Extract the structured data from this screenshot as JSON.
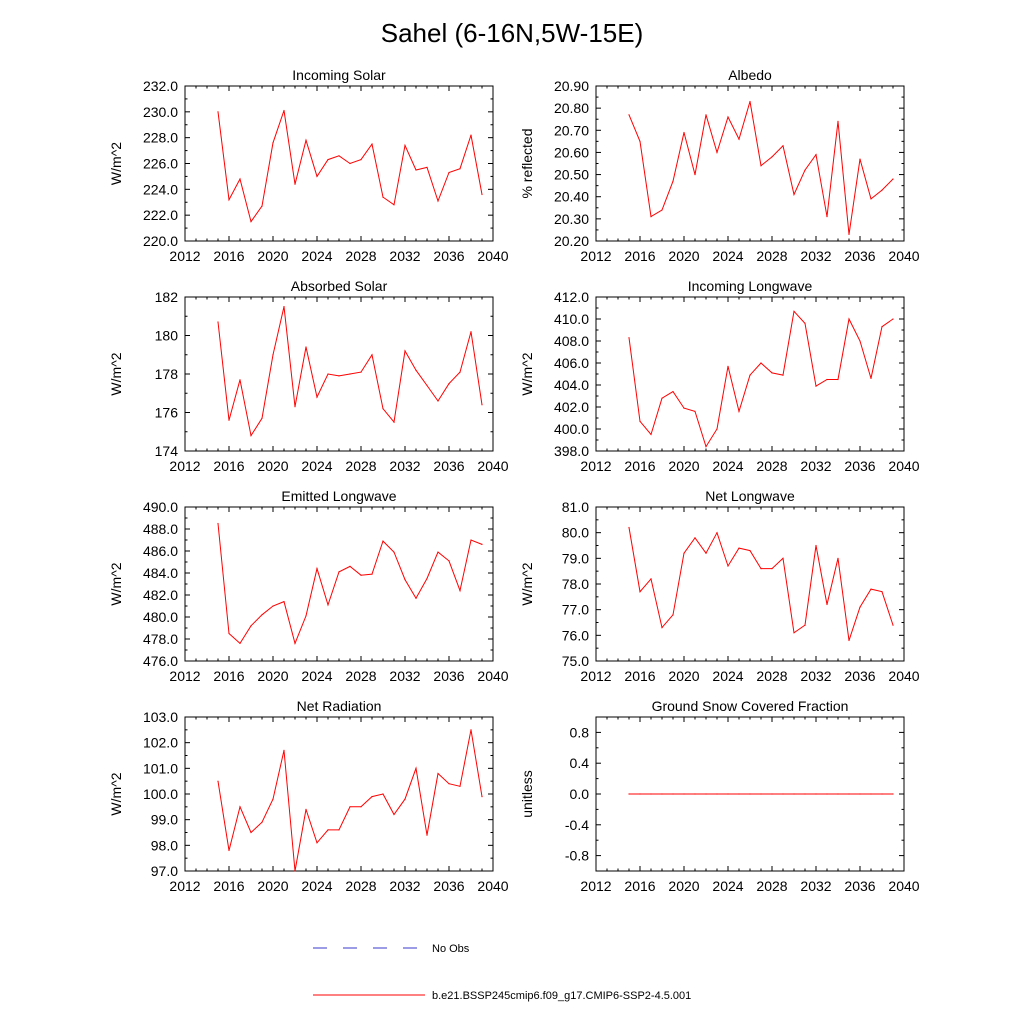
{
  "title": "Sahel (6-16N,5W-15E)",
  "colors": {
    "model": "#ff0000",
    "obs": "#3a3acc",
    "axis": "#000000"
  },
  "legend": {
    "obs_label": "No Obs",
    "model_label": "b.e21.BSSP245cmip6.f09_g17.CMIP6-SSP2-4.5.001"
  },
  "chart_data": [
    {
      "type": "line",
      "title": "Incoming Solar",
      "ylabel": "W/m^2",
      "xlim": [
        2012,
        2040
      ],
      "ylim": [
        220,
        232
      ],
      "xticks": [
        2012,
        2016,
        2020,
        2024,
        2028,
        2032,
        2036,
        2040
      ],
      "xtick_labels": [
        "2012",
        "2016",
        "2020",
        "2024",
        "2028",
        "2032",
        "2036",
        "2040"
      ],
      "yticks": [
        220,
        222,
        224,
        226,
        228,
        230,
        232
      ],
      "ytick_labels": [
        "220.0",
        "222.0",
        "224.0",
        "226.0",
        "228.0",
        "230.0",
        "232.0"
      ],
      "x": [
        2015,
        2016,
        2017,
        2018,
        2019,
        2020,
        2021,
        2022,
        2023,
        2024,
        2025,
        2026,
        2027,
        2028,
        2029,
        2030,
        2031,
        2032,
        2033,
        2034,
        2035,
        2036,
        2037,
        2038,
        2039
      ],
      "series": [
        {
          "name": "b.e21.BSSP245cmip6.f09_g17.CMIP6-SSP2-4.5.001",
          "values": [
            230.0,
            223.2,
            224.8,
            221.5,
            222.7,
            227.6,
            230.1,
            224.4,
            227.8,
            225.0,
            226.3,
            226.6,
            226.0,
            226.3,
            227.5,
            223.4,
            222.8,
            227.4,
            225.5,
            225.7,
            223.1,
            225.3,
            225.6,
            228.2,
            223.6
          ]
        }
      ]
    },
    {
      "type": "line",
      "title": "Albedo",
      "ylabel": "% reflected",
      "xlim": [
        2012,
        2040
      ],
      "ylim": [
        20.2,
        20.9
      ],
      "xticks": [
        2012,
        2016,
        2020,
        2024,
        2028,
        2032,
        2036,
        2040
      ],
      "xtick_labels": [
        "2012",
        "2016",
        "2020",
        "2024",
        "2028",
        "2032",
        "2036",
        "2040"
      ],
      "yticks": [
        20.2,
        20.3,
        20.4,
        20.5,
        20.6,
        20.7,
        20.8,
        20.9
      ],
      "ytick_labels": [
        "20.20",
        "20.30",
        "20.40",
        "20.50",
        "20.60",
        "20.70",
        "20.80",
        "20.90"
      ],
      "x": [
        2015,
        2016,
        2017,
        2018,
        2019,
        2020,
        2021,
        2022,
        2023,
        2024,
        2025,
        2026,
        2027,
        2028,
        2029,
        2030,
        2031,
        2032,
        2033,
        2034,
        2035,
        2036,
        2037,
        2038,
        2039
      ],
      "series": [
        {
          "name": "b.e21.BSSP245cmip6.f09_g17.CMIP6-SSP2-4.5.001",
          "values": [
            20.77,
            20.65,
            20.31,
            20.34,
            20.47,
            20.69,
            20.5,
            20.77,
            20.6,
            20.76,
            20.66,
            20.83,
            20.54,
            20.58,
            20.63,
            20.41,
            20.52,
            20.59,
            20.31,
            20.74,
            20.23,
            20.57,
            20.39,
            20.43,
            20.48
          ]
        }
      ]
    },
    {
      "type": "line",
      "title": "Absorbed Solar",
      "ylabel": "W/m^2",
      "xlim": [
        2012,
        2040
      ],
      "ylim": [
        174,
        182
      ],
      "xticks": [
        2012,
        2016,
        2020,
        2024,
        2028,
        2032,
        2036,
        2040
      ],
      "xtick_labels": [
        "2012",
        "2016",
        "2020",
        "2024",
        "2028",
        "2032",
        "2036",
        "2040"
      ],
      "yticks": [
        174,
        176,
        178,
        180,
        182
      ],
      "ytick_labels": [
        "174",
        "176",
        "178",
        "180",
        "182"
      ],
      "x": [
        2015,
        2016,
        2017,
        2018,
        2019,
        2020,
        2021,
        2022,
        2023,
        2024,
        2025,
        2026,
        2027,
        2028,
        2029,
        2030,
        2031,
        2032,
        2033,
        2034,
        2035,
        2036,
        2037,
        2038,
        2039
      ],
      "series": [
        {
          "name": "b.e21.BSSP245cmip6.f09_g17.CMIP6-SSP2-4.5.001",
          "values": [
            180.7,
            175.6,
            177.7,
            174.8,
            175.7,
            179.0,
            181.5,
            176.3,
            179.4,
            176.8,
            178.0,
            177.9,
            178.0,
            178.1,
            179.0,
            176.2,
            175.5,
            179.2,
            178.2,
            177.4,
            176.6,
            177.5,
            178.1,
            180.2,
            176.4
          ]
        }
      ]
    },
    {
      "type": "line",
      "title": "Incoming Longwave",
      "ylabel": "W/m^2",
      "xlim": [
        2012,
        2040
      ],
      "ylim": [
        398,
        412
      ],
      "xticks": [
        2012,
        2016,
        2020,
        2024,
        2028,
        2032,
        2036,
        2040
      ],
      "xtick_labels": [
        "2012",
        "2016",
        "2020",
        "2024",
        "2028",
        "2032",
        "2036",
        "2040"
      ],
      "yticks": [
        398,
        400,
        402,
        404,
        406,
        408,
        410,
        412
      ],
      "ytick_labels": [
        "398.0",
        "400.0",
        "402.0",
        "404.0",
        "406.0",
        "408.0",
        "410.0",
        "412.0"
      ],
      "x": [
        2015,
        2016,
        2017,
        2018,
        2019,
        2020,
        2021,
        2022,
        2023,
        2024,
        2025,
        2026,
        2027,
        2028,
        2029,
        2030,
        2031,
        2032,
        2033,
        2034,
        2035,
        2036,
        2037,
        2038,
        2039
      ],
      "series": [
        {
          "name": "b.e21.BSSP245cmip6.f09_g17.CMIP6-SSP2-4.5.001",
          "values": [
            408.3,
            400.7,
            399.5,
            402.8,
            403.4,
            401.9,
            401.6,
            398.4,
            400.0,
            405.7,
            401.6,
            404.9,
            406.0,
            405.1,
            404.9,
            410.7,
            409.6,
            403.9,
            404.5,
            404.5,
            410.0,
            408.0,
            404.6,
            409.3,
            410.0
          ]
        }
      ]
    },
    {
      "type": "line",
      "title": "Emitted Longwave",
      "ylabel": "W/m^2",
      "xlim": [
        2012,
        2040
      ],
      "ylim": [
        476,
        490
      ],
      "xticks": [
        2012,
        2016,
        2020,
        2024,
        2028,
        2032,
        2036,
        2040
      ],
      "xtick_labels": [
        "2012",
        "2016",
        "2020",
        "2024",
        "2028",
        "2032",
        "2036",
        "2040"
      ],
      "yticks": [
        476,
        478,
        480,
        482,
        484,
        486,
        488,
        490
      ],
      "ytick_labels": [
        "476.0",
        "478.0",
        "480.0",
        "482.0",
        "484.0",
        "486.0",
        "488.0",
        "490.0"
      ],
      "x": [
        2015,
        2016,
        2017,
        2018,
        2019,
        2020,
        2021,
        2022,
        2023,
        2024,
        2025,
        2026,
        2027,
        2028,
        2029,
        2030,
        2031,
        2032,
        2033,
        2034,
        2035,
        2036,
        2037,
        2038,
        2039
      ],
      "series": [
        {
          "name": "b.e21.BSSP245cmip6.f09_g17.CMIP6-SSP2-4.5.001",
          "values": [
            488.5,
            478.5,
            477.6,
            479.2,
            480.2,
            481.0,
            481.4,
            477.6,
            480.1,
            484.4,
            481.1,
            484.1,
            484.6,
            483.8,
            483.9,
            486.9,
            485.9,
            483.4,
            481.7,
            483.5,
            485.9,
            485.1,
            482.4,
            487.0,
            486.6
          ]
        }
      ]
    },
    {
      "type": "line",
      "title": "Net Longwave",
      "ylabel": "W/m^2",
      "xlim": [
        2012,
        2040
      ],
      "ylim": [
        75,
        81
      ],
      "xticks": [
        2012,
        2016,
        2020,
        2024,
        2028,
        2032,
        2036,
        2040
      ],
      "xtick_labels": [
        "2012",
        "2016",
        "2020",
        "2024",
        "2028",
        "2032",
        "2036",
        "2040"
      ],
      "yticks": [
        75,
        76,
        77,
        78,
        79,
        80,
        81
      ],
      "ytick_labels": [
        "75.0",
        "76.0",
        "77.0",
        "78.0",
        "79.0",
        "80.0",
        "81.0"
      ],
      "x": [
        2015,
        2016,
        2017,
        2018,
        2019,
        2020,
        2021,
        2022,
        2023,
        2024,
        2025,
        2026,
        2027,
        2028,
        2029,
        2030,
        2031,
        2032,
        2033,
        2034,
        2035,
        2036,
        2037,
        2038,
        2039
      ],
      "series": [
        {
          "name": "b.e21.BSSP245cmip6.f09_g17.CMIP6-SSP2-4.5.001",
          "values": [
            80.2,
            77.7,
            78.2,
            76.3,
            76.8,
            79.2,
            79.8,
            79.2,
            80.0,
            78.7,
            79.4,
            79.3,
            78.6,
            78.6,
            79.0,
            76.1,
            76.4,
            79.5,
            77.2,
            79.0,
            75.8,
            77.1,
            77.8,
            77.7,
            76.4
          ]
        }
      ]
    },
    {
      "type": "line",
      "title": "Net Radiation",
      "ylabel": "W/m^2",
      "xlim": [
        2012,
        2040
      ],
      "ylim": [
        97,
        103
      ],
      "xticks": [
        2012,
        2016,
        2020,
        2024,
        2028,
        2032,
        2036,
        2040
      ],
      "xtick_labels": [
        "2012",
        "2016",
        "2020",
        "2024",
        "2028",
        "2032",
        "2036",
        "2040"
      ],
      "yticks": [
        97,
        98,
        99,
        100,
        101,
        102,
        103
      ],
      "ytick_labels": [
        "97.0",
        "98.0",
        "99.0",
        "100.0",
        "101.0",
        "102.0",
        "103.0"
      ],
      "x": [
        2015,
        2016,
        2017,
        2018,
        2019,
        2020,
        2021,
        2022,
        2023,
        2024,
        2025,
        2026,
        2027,
        2028,
        2029,
        2030,
        2031,
        2032,
        2033,
        2034,
        2035,
        2036,
        2037,
        2038,
        2039
      ],
      "series": [
        {
          "name": "b.e21.BSSP245cmip6.f09_g17.CMIP6-SSP2-4.5.001",
          "values": [
            100.5,
            97.8,
            99.5,
            98.5,
            98.9,
            99.8,
            101.7,
            97.0,
            99.4,
            98.1,
            98.6,
            98.6,
            99.5,
            99.5,
            99.9,
            100.0,
            99.2,
            99.8,
            101.0,
            98.4,
            100.8,
            100.4,
            100.3,
            102.5,
            99.9
          ]
        }
      ]
    },
    {
      "type": "line",
      "title": "Ground Snow Covered Fraction",
      "ylabel": "unitless",
      "xlim": [
        2012,
        2040
      ],
      "ylim": [
        -1.0,
        1.0
      ],
      "xticks": [
        2012,
        2016,
        2020,
        2024,
        2028,
        2032,
        2036,
        2040
      ],
      "xtick_labels": [
        "2012",
        "2016",
        "2020",
        "2024",
        "2028",
        "2032",
        "2036",
        "2040"
      ],
      "yticks": [
        -0.8,
        -0.4,
        0.0,
        0.4,
        0.8
      ],
      "ytick_labels": [
        "-0.8",
        "-0.4",
        "0.0",
        "0.4",
        "0.8"
      ],
      "x": [
        2015,
        2016,
        2017,
        2018,
        2019,
        2020,
        2021,
        2022,
        2023,
        2024,
        2025,
        2026,
        2027,
        2028,
        2029,
        2030,
        2031,
        2032,
        2033,
        2034,
        2035,
        2036,
        2037,
        2038,
        2039
      ],
      "series": [
        {
          "name": "b.e21.BSSP245cmip6.f09_g17.CMIP6-SSP2-4.5.001",
          "values": [
            0,
            0,
            0,
            0,
            0,
            0,
            0,
            0,
            0,
            0,
            0,
            0,
            0,
            0,
            0,
            0,
            0,
            0,
            0,
            0,
            0,
            0,
            0,
            0,
            0
          ]
        }
      ]
    }
  ]
}
